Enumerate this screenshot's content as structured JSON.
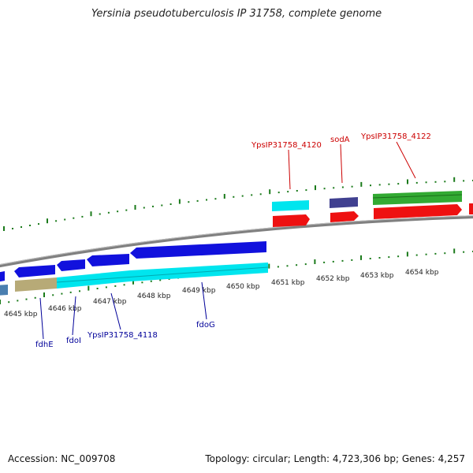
{
  "title": "Yersinia pseudotuberculosis IP 31758, complete genome",
  "footer": {
    "accession": "Accession: NC_009708",
    "summary": "Topology: circular; Length: 4,723,306 bp; Genes: 4,257"
  },
  "colors": {
    "backbone": "#808080",
    "tick": "#1a7a1a",
    "top_label": "#cc0000",
    "bottom_label": "#000099"
  },
  "kbp_labels": [
    "4645 kbp",
    "4646 kbp",
    "4647 kbp",
    "4648 kbp",
    "4649 kbp",
    "4650 kbp",
    "4651 kbp",
    "4652 kbp",
    "4653 kbp",
    "4654 kbp"
  ],
  "gene_labels_top": [
    "YpsIP31758_4120",
    "sodA",
    "YpsIP31758_4122"
  ],
  "gene_labels_bottom": [
    "fdhE",
    "fdoI",
    "YpsIP31758_4118",
    "fdoG"
  ]
}
